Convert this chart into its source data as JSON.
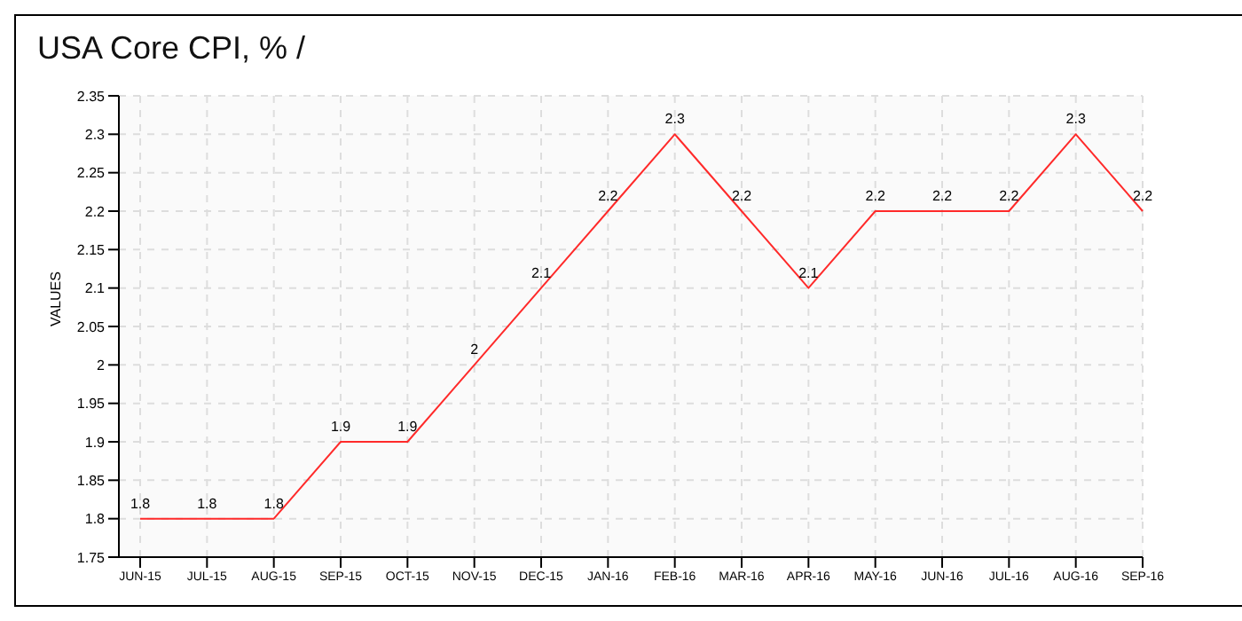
{
  "chart_data": {
    "type": "line",
    "title": "USA Core CPI, % /",
    "ylabel": "VALUES",
    "categories": [
      "JUN-15",
      "JUL-15",
      "AUG-15",
      "SEP-15",
      "OCT-15",
      "NOV-15",
      "DEC-15",
      "JAN-16",
      "FEB-16",
      "MAR-16",
      "APR-16",
      "MAY-16",
      "JUN-16",
      "JUL-16",
      "AUG-16",
      "SEP-16"
    ],
    "series": [
      {
        "color": "#ff2a2a",
        "values": [
          1.8,
          1.8,
          1.8,
          1.9,
          1.9,
          2,
          2.1,
          2.2,
          2.3,
          2.2,
          2.1,
          2.2,
          2.2,
          2.2,
          2.3,
          2.2
        ]
      }
    ],
    "ylim": [
      1.75,
      2.35
    ],
    "yticks": [
      1.75,
      1.8,
      1.85,
      1.9,
      1.95,
      2,
      2.05,
      2.1,
      2.15,
      2.2,
      2.25,
      2.3,
      2.35
    ],
    "grid": true,
    "legend": false,
    "marker": "none",
    "line_style": "solid",
    "data_labels": true
  }
}
